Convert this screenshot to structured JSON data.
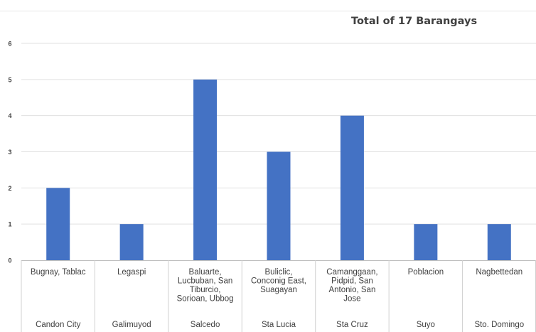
{
  "chart_data": {
    "type": "bar",
    "title": "Total of 17 Barangays",
    "xlabel": "",
    "ylabel": "",
    "ylim": [
      0,
      6
    ],
    "yticks": [
      0,
      1,
      2,
      3,
      4,
      5,
      6
    ],
    "grid": true,
    "legend": "none",
    "bar_color": "#4472c4",
    "categories": [
      {
        "label_lines": [
          "Bugnay, Tablac"
        ],
        "group": "Candon City",
        "value": 2
      },
      {
        "label_lines": [
          "Legaspi"
        ],
        "group": "Galimuyod",
        "value": 1
      },
      {
        "label_lines": [
          "Baluarte,",
          "Lucbuban, San",
          "Tiburcio,",
          "Sorioan, Ubbog"
        ],
        "group": "Salcedo",
        "value": 5
      },
      {
        "label_lines": [
          "Buliclic,",
          "Conconig East,",
          "Suagayan"
        ],
        "group": "Sta Lucia",
        "value": 3
      },
      {
        "label_lines": [
          "Camanggaan,",
          "Pidpid, San",
          "Antonio, San",
          "Jose"
        ],
        "group": "Sta Cruz",
        "value": 4
      },
      {
        "label_lines": [
          "Poblacion"
        ],
        "group": "Suyo",
        "value": 1
      },
      {
        "label_lines": [
          "Nagbettedan"
        ],
        "group": "Sto. Domingo",
        "value": 1
      }
    ]
  }
}
